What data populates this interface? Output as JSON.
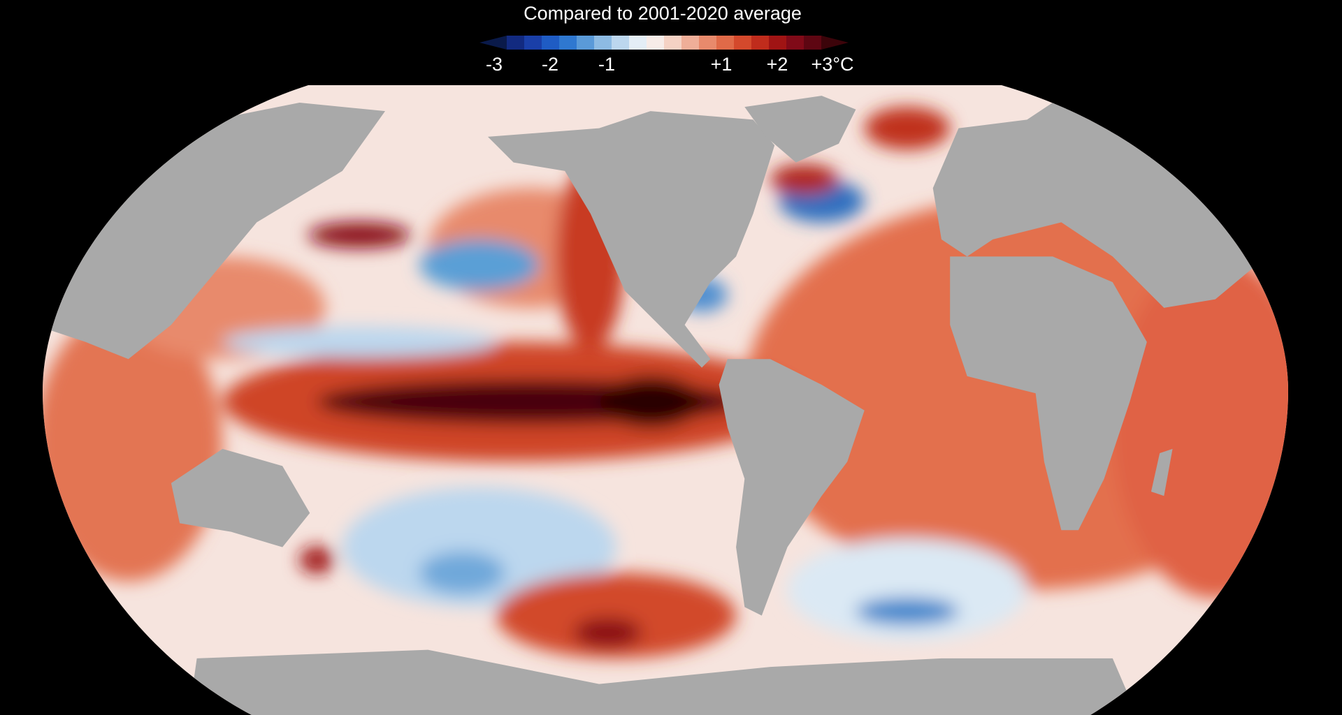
{
  "header": {
    "title": "Compared to 2001-2020 average"
  },
  "legend": {
    "labels": [
      "-3",
      "-2",
      "-1",
      "+1",
      "+2",
      "+3°C"
    ],
    "colors": [
      "#0a1a4a",
      "#122a80",
      "#1a3fa8",
      "#1f5cc4",
      "#2f78d0",
      "#5a9ad8",
      "#8dbbe3",
      "#bcd7ee",
      "#e4eef6",
      "#f7ece8",
      "#f5d2c4",
      "#efae98",
      "#e88a6c",
      "#e06a48",
      "#d4492c",
      "#c02c1c",
      "#a01414",
      "#800a18",
      "#5e0612",
      "#3c040a"
    ]
  }
}
